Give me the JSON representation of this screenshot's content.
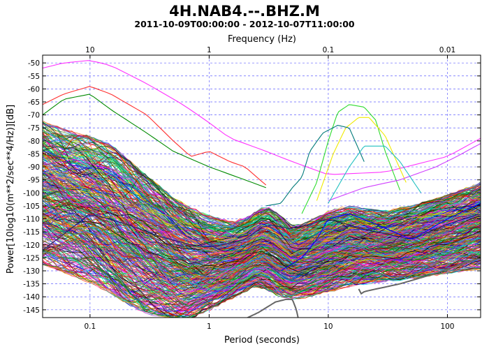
{
  "chart_data": {
    "type": "line",
    "title": "4H.NAB4.--.BHZ.M",
    "subtitle": "2011-10-09T00:00:00 - 2012-10-07T11:00:00",
    "xlabel": "Period (seconds)",
    "ylabel": "Power[10log10(m**2/sec**4/Hz)][dB]",
    "top_xlabel": "Frequency (Hz)",
    "x_scale": "log",
    "xlim": [
      0.04,
      190
    ],
    "ylim": [
      -148,
      -47
    ],
    "x_ticks": [
      0.1,
      1,
      10,
      100
    ],
    "x_tick_labels": [
      "0.1",
      "1",
      "10",
      "100"
    ],
    "top_ticks": [
      10,
      1,
      0.1,
      0.01
    ],
    "top_tick_labels": [
      "10",
      "1",
      "0.1",
      "0.01"
    ],
    "y_ticks": [
      -50,
      -55,
      -60,
      -65,
      -70,
      -75,
      -80,
      -85,
      -90,
      -95,
      -100,
      -105,
      -110,
      -115,
      -120,
      -125,
      -130,
      -135,
      -140,
      -145
    ],
    "grid": true,
    "series_count": 420,
    "envelope": {
      "period": [
        0.04,
        0.06,
        0.1,
        0.15,
        0.2,
        0.3,
        0.5,
        0.7,
        1,
        1.5,
        2,
        2.5,
        3,
        4,
        5,
        7,
        10,
        15,
        20,
        30,
        50,
        100,
        190
      ],
      "median": [
        -86,
        -90,
        -95,
        -100,
        -107,
        -118,
        -126,
        -128,
        -127,
        -124,
        -120,
        -118,
        -120,
        -127,
        -131,
        -130,
        -128,
        -125,
        -126,
        -128,
        -126,
        -120,
        -116
      ],
      "upper": [
        -74,
        -77,
        -80,
        -83,
        -88,
        -95,
        -103,
        -107,
        -110,
        -112,
        -111,
        -108,
        -106,
        -110,
        -114,
        -112,
        -108,
        -106,
        -107,
        -108,
        -106,
        -102,
        -97
      ],
      "lower": [
        -126,
        -129,
        -133,
        -137,
        -141,
        -145,
        -147,
        -147,
        -144,
        -140,
        -137,
        -135,
        -136,
        -139,
        -140,
        -139,
        -137,
        -135,
        -134,
        -133,
        -132,
        -130,
        -128
      ]
    },
    "outliers": [
      {
        "color": "#ff33ff",
        "period": [
          0.04,
          0.06,
          0.1,
          0.15,
          0.3,
          0.6,
          1,
          1.5,
          2,
          3,
          5,
          10,
          30,
          100,
          190
        ],
        "values": [
          -52,
          -50,
          -49,
          -51,
          -58,
          -66,
          -73,
          -79,
          -81,
          -84,
          -88,
          -93,
          -92,
          -86,
          -79
        ]
      },
      {
        "color": "#ff3030",
        "period": [
          0.04,
          0.06,
          0.1,
          0.15,
          0.3,
          0.5,
          0.7,
          1,
          1.5,
          2,
          3
        ],
        "values": [
          -66,
          -62,
          -59,
          -62,
          -70,
          -80,
          -86,
          -84,
          -88,
          -90,
          -97
        ]
      },
      {
        "color": "#008a00",
        "period": [
          0.04,
          0.06,
          0.1,
          0.15,
          0.3,
          0.5,
          1,
          2,
          3
        ],
        "values": [
          -70,
          -64,
          -62,
          -68,
          -77,
          -84,
          -90,
          -95,
          -98
        ]
      },
      {
        "color": "#2fdc2f",
        "period": [
          6,
          8,
          10,
          12,
          15,
          20,
          25,
          30,
          40
        ],
        "values": [
          -108,
          -96,
          -80,
          -69,
          -66,
          -67,
          -72,
          -84,
          -99
        ]
      },
      {
        "color": "#f0ea00",
        "period": [
          8,
          11,
          14,
          18,
          22,
          30,
          45
        ],
        "values": [
          -103,
          -85,
          -75,
          -71,
          -71,
          -78,
          -96
        ]
      },
      {
        "color": "#007a7a",
        "period": [
          3,
          4,
          5,
          6,
          7,
          9,
          12,
          15,
          20
        ],
        "values": [
          -105,
          -104,
          -98,
          -94,
          -84,
          -77,
          -74,
          -75,
          -88
        ]
      },
      {
        "color": "#d040ff",
        "period": [
          10,
          20,
          40,
          80,
          120,
          190
        ],
        "values": [
          -103,
          -98,
          -95,
          -90,
          -86,
          -81
        ]
      },
      {
        "color": "#22c0c0",
        "period": [
          10,
          15,
          20,
          30,
          40,
          60
        ],
        "values": [
          -104,
          -90,
          -82,
          -82,
          -88,
          -100
        ]
      },
      {
        "color": "#666666",
        "period": [
          18,
          19,
          20,
          40,
          80,
          120,
          190
        ],
        "values": [
          -137,
          -139,
          -138,
          -135,
          -131,
          -128,
          -125
        ]
      },
      {
        "color": "#666666",
        "period": [
          1.9,
          2.6,
          3.6,
          4.4,
          5.0,
          5.4,
          5.7
        ],
        "values": [
          -149,
          -146,
          -142,
          -141,
          -141,
          -145,
          -150
        ]
      },
      {
        "color": "#222266",
        "period": [
          0.04,
          0.06,
          0.1,
          0.2,
          0.4,
          0.7,
          1,
          2,
          3,
          5,
          10,
          20,
          50,
          100,
          190
        ],
        "values": [
          -122,
          -116,
          -108,
          -112,
          -117,
          -120,
          -121,
          -118,
          -112,
          -114,
          -110,
          -114,
          -118,
          -112,
          -108
        ]
      },
      {
        "color": "#0000ff",
        "period": [
          4,
          6,
          8,
          10,
          15,
          25,
          50,
          100,
          190
        ],
        "values": [
          -130,
          -125,
          -118,
          -110,
          -108,
          -112,
          -118,
          -110,
          -104
        ]
      }
    ]
  }
}
